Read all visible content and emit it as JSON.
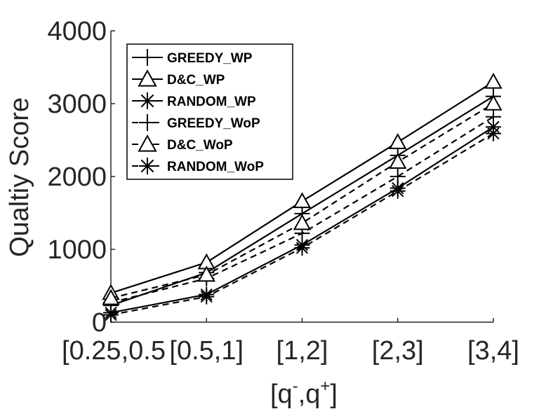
{
  "chart_data": {
    "type": "line",
    "title": "",
    "xlabel": "[q⁻,q⁺]",
    "xlabel_parts": {
      "open": "[q",
      "minus": "-",
      "comma": ",q",
      "plus": "+",
      "close": "]"
    },
    "ylabel": "Qualtiy Score",
    "categories": [
      "[0.25,0.5]",
      "[0.5,1]",
      "[1,2]",
      "[2,3]",
      "[3,4]"
    ],
    "category_labels_shown": [
      "[0.25,0.5",
      "[0.5,1]",
      "[1,2]",
      "[2,3]",
      "[3,4]"
    ],
    "yticks": [
      "0",
      "1000",
      "2000",
      "3000",
      "4000"
    ],
    "ylim": [
      0,
      4000
    ],
    "grid": false,
    "legend_position": "top-left",
    "series": [
      {
        "name": "GREEDY_WP",
        "marker": "plus",
        "line": "solid",
        "values": [
          230,
          680,
          1490,
          2290,
          3100
        ]
      },
      {
        "name": "D&C_WP",
        "marker": "triangle",
        "line": "solid",
        "values": [
          400,
          820,
          1660,
          2470,
          3300
        ]
      },
      {
        "name": "RANDOM_WP",
        "marker": "star",
        "line": "solid",
        "values": [
          130,
          380,
          1060,
          1840,
          2680
        ]
      },
      {
        "name": "GREEDY_WoP",
        "marker": "plus",
        "line": "dashed",
        "values": [
          270,
          600,
          1220,
          2000,
          2820
        ]
      },
      {
        "name": "D&C_WoP",
        "marker": "triangle",
        "line": "dashed",
        "values": [
          330,
          650,
          1360,
          2200,
          3000
        ]
      },
      {
        "name": "RANDOM_WoP",
        "marker": "star",
        "line": "dashed",
        "values": [
          100,
          350,
          1020,
          1800,
          2590
        ]
      }
    ]
  }
}
